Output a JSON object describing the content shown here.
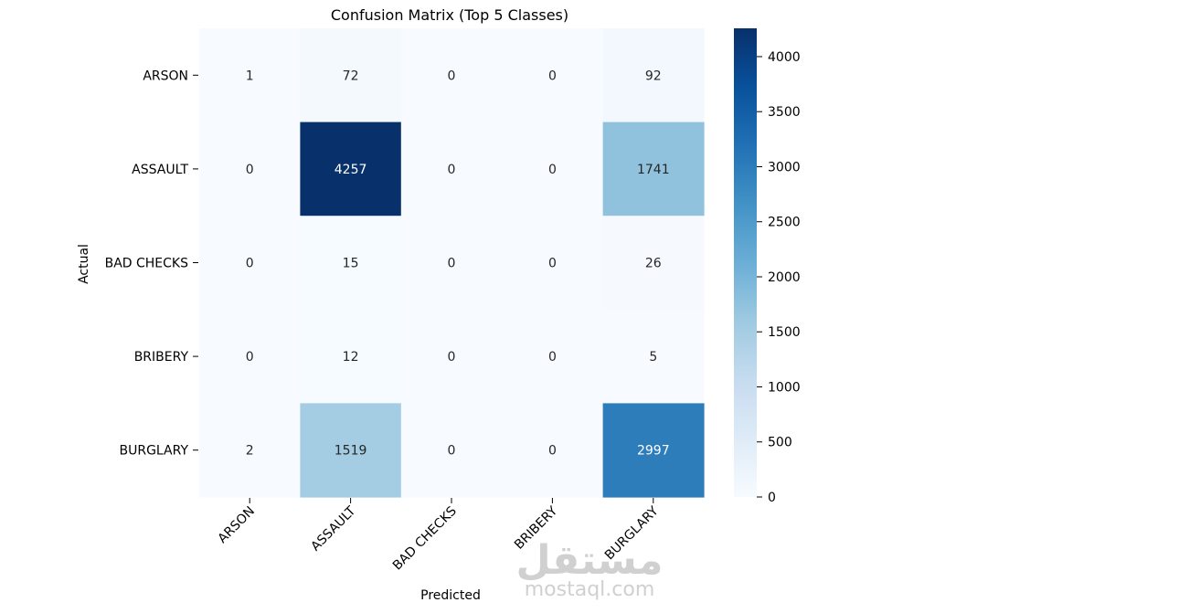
{
  "chart_data": {
    "type": "heatmap",
    "title": "Confusion Matrix (Top 5 Classes)",
    "xlabel": "Predicted",
    "ylabel": "Actual",
    "x_categories": [
      "ARSON",
      "ASSAULT",
      "BAD CHECKS",
      "BRIBERY",
      "BURGLARY"
    ],
    "y_categories": [
      "ARSON",
      "ASSAULT",
      "BAD CHECKS",
      "BRIBERY",
      "BURGLARY"
    ],
    "values": [
      [
        1,
        72,
        0,
        0,
        92
      ],
      [
        0,
        4257,
        0,
        0,
        1741
      ],
      [
        0,
        15,
        0,
        0,
        26
      ],
      [
        0,
        12,
        0,
        0,
        5
      ],
      [
        2,
        1519,
        0,
        0,
        2997
      ]
    ],
    "colormap": "Blues",
    "colorbar": {
      "min": 0,
      "max": 4257,
      "ticks": [
        0,
        500,
        1000,
        1500,
        2000,
        2500,
        3000,
        3500,
        4000
      ]
    },
    "legend": "colorbar-right",
    "grid": false
  },
  "watermark": {
    "main": "مستقل",
    "sub": "mostaql.com"
  }
}
